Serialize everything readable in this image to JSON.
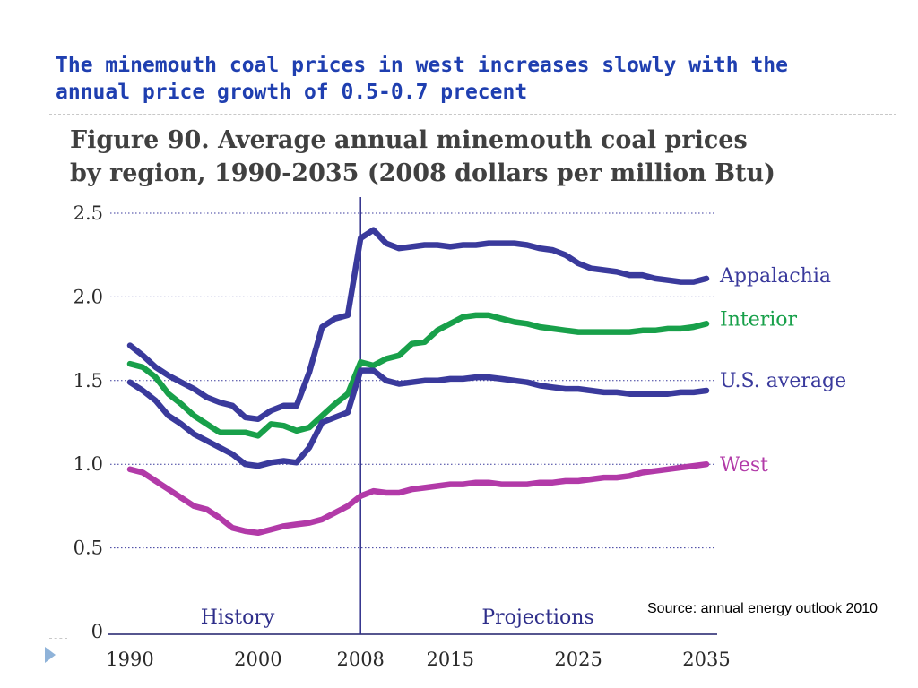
{
  "slide": {
    "title": "The minemouth coal prices in west increases slowly with the annual price growth of 0.5-0.7 precent",
    "source": "Source: annual energy outlook 2010"
  },
  "colors": {
    "title": "#1f3fb0",
    "appalachia": "#3a3a9c",
    "interior": "#18a04a",
    "us_average": "#3a3a9c",
    "west": "#b23aa8"
  },
  "icons": {
    "bullet": "triangle-arrow-icon"
  },
  "chart_data": {
    "type": "line",
    "title_lines": [
      "Figure 90. Average annual minemouth coal prices",
      "by region, 1990-2035 (2008 dollars per million Btu)"
    ],
    "xlabel": "",
    "ylabel": "",
    "xlim": [
      1990,
      2035
    ],
    "ylim": [
      0,
      2.5
    ],
    "x_ticks": [
      {
        "value": 1990,
        "label": "1990"
      },
      {
        "value": 2000,
        "label": "2000"
      },
      {
        "value": 2008,
        "label": "2008"
      },
      {
        "value": 2015,
        "label": "2015"
      },
      {
        "value": 2025,
        "label": "2025"
      },
      {
        "value": 2035,
        "label": "2035"
      }
    ],
    "y_ticks": [
      {
        "value": 0,
        "label": "0",
        "grid": false
      },
      {
        "value": 0.5,
        "label": "0.5",
        "grid": true
      },
      {
        "value": 1.0,
        "label": "1.0",
        "grid": true
      },
      {
        "value": 1.5,
        "label": "1.5",
        "grid": true
      },
      {
        "value": 2.0,
        "label": "2.0",
        "grid": true
      },
      {
        "value": 2.5,
        "label": "2.5",
        "grid": true
      }
    ],
    "grid": "horizontal dotted",
    "divider_year": 2008,
    "region_labels": [
      "History",
      "Projections"
    ],
    "x": [
      1990,
      1991,
      1992,
      1993,
      1994,
      1995,
      1996,
      1997,
      1998,
      1999,
      2000,
      2001,
      2002,
      2003,
      2004,
      2005,
      2006,
      2007,
      2008,
      2009,
      2010,
      2011,
      2012,
      2013,
      2014,
      2015,
      2016,
      2017,
      2018,
      2019,
      2020,
      2021,
      2022,
      2023,
      2024,
      2025,
      2026,
      2027,
      2028,
      2029,
      2030,
      2031,
      2032,
      2033,
      2034,
      2035
    ],
    "series": [
      {
        "name": "Appalachia",
        "color_key": "appalachia",
        "values": [
          1.71,
          1.65,
          1.58,
          1.53,
          1.49,
          1.45,
          1.4,
          1.37,
          1.35,
          1.28,
          1.27,
          1.32,
          1.35,
          1.35,
          1.55,
          1.82,
          1.87,
          1.89,
          2.35,
          2.4,
          2.32,
          2.29,
          2.3,
          2.31,
          2.31,
          2.3,
          2.31,
          2.31,
          2.32,
          2.32,
          2.32,
          2.31,
          2.29,
          2.28,
          2.25,
          2.2,
          2.17,
          2.16,
          2.15,
          2.13,
          2.13,
          2.11,
          2.1,
          2.09,
          2.09,
          2.11
        ]
      },
      {
        "name": "Interior",
        "color_key": "interior",
        "values": [
          1.6,
          1.58,
          1.52,
          1.42,
          1.36,
          1.29,
          1.24,
          1.19,
          1.19,
          1.19,
          1.17,
          1.24,
          1.23,
          1.2,
          1.22,
          1.29,
          1.36,
          1.42,
          1.61,
          1.59,
          1.63,
          1.65,
          1.72,
          1.73,
          1.8,
          1.84,
          1.88,
          1.89,
          1.89,
          1.87,
          1.85,
          1.84,
          1.82,
          1.81,
          1.8,
          1.79,
          1.79,
          1.79,
          1.79,
          1.79,
          1.8,
          1.8,
          1.81,
          1.81,
          1.82,
          1.84
        ]
      },
      {
        "name": "U.S. average",
        "color_key": "us_average",
        "values": [
          1.49,
          1.44,
          1.38,
          1.29,
          1.24,
          1.18,
          1.14,
          1.1,
          1.06,
          1.0,
          0.99,
          1.01,
          1.02,
          1.01,
          1.1,
          1.25,
          1.28,
          1.31,
          1.56,
          1.56,
          1.5,
          1.48,
          1.49,
          1.5,
          1.5,
          1.51,
          1.51,
          1.52,
          1.52,
          1.51,
          1.5,
          1.49,
          1.47,
          1.46,
          1.45,
          1.45,
          1.44,
          1.43,
          1.43,
          1.42,
          1.42,
          1.42,
          1.42,
          1.43,
          1.43,
          1.44
        ]
      },
      {
        "name": "West",
        "color_key": "west",
        "values": [
          0.97,
          0.95,
          0.9,
          0.85,
          0.8,
          0.75,
          0.73,
          0.68,
          0.62,
          0.6,
          0.59,
          0.61,
          0.63,
          0.64,
          0.65,
          0.67,
          0.71,
          0.75,
          0.81,
          0.84,
          0.83,
          0.83,
          0.85,
          0.86,
          0.87,
          0.88,
          0.88,
          0.89,
          0.89,
          0.88,
          0.88,
          0.88,
          0.89,
          0.89,
          0.9,
          0.9,
          0.91,
          0.92,
          0.92,
          0.93,
          0.95,
          0.96,
          0.97,
          0.98,
          0.99,
          1.0
        ]
      }
    ]
  }
}
